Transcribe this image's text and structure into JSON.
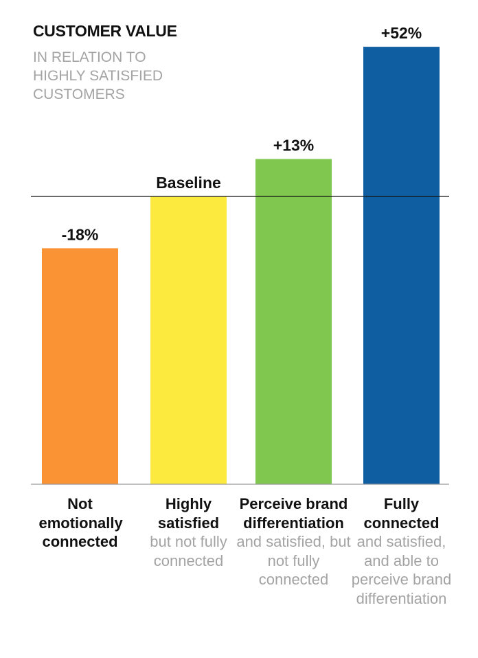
{
  "chart_data": {
    "type": "bar",
    "title": "CUSTOMER VALUE",
    "subtitle": "IN RELATION TO HIGHLY SATISFIED CUSTOMERS",
    "categories": [
      {
        "main": "Not emotionally connected",
        "sub": ""
      },
      {
        "main": "Highly satisfied",
        "sub": "but not fully connected"
      },
      {
        "main": "Perceive brand differentiation",
        "sub": "and satisfied, but not fully connected"
      },
      {
        "main": "Fully connected",
        "sub": "and satisfied, and able to perceive brand differentiation"
      }
    ],
    "values": [
      -18,
      0,
      13,
      52
    ],
    "value_labels": [
      "-18%",
      "Baseline",
      "+13%",
      "+52%"
    ],
    "unit": "% relative to baseline",
    "baseline": 0,
    "colors": [
      "#F99333",
      "#FDEA3F",
      "#7FC74E",
      "#0E5EA1"
    ],
    "grid": false,
    "legend": "none"
  }
}
